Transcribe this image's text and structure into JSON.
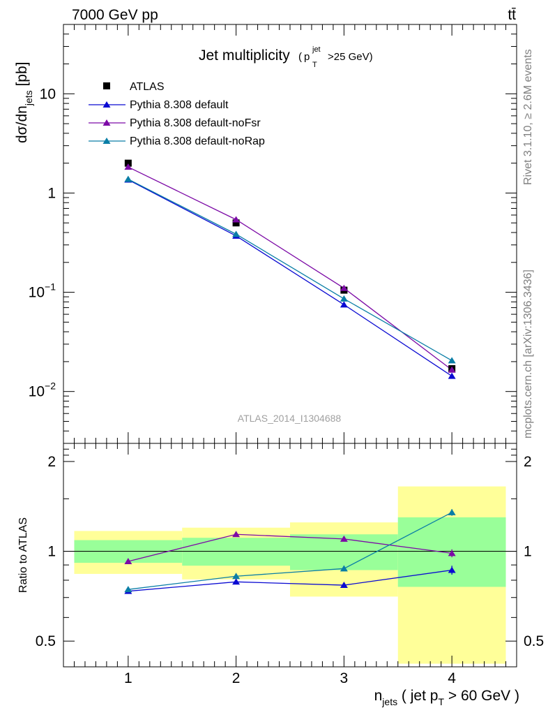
{
  "header": {
    "energy_label": "7000 GeV pp",
    "process_label": "tt̄",
    "side_label_top": "Rivet 3.1.10, ≥ 2.6M events",
    "side_label_bottom": "mcplots.cern.ch [arXiv:1306.3436]"
  },
  "chart_data": [
    {
      "type": "line",
      "title": "Jet multiplicity",
      "title_sub_p": "p",
      "title_sub_sup": "jet",
      "title_sub_sub": "T",
      "title_sub_rest": ">25 GeV)",
      "title_sub_open": "(",
      "analysis_label": "ATLAS_2014_I1304688",
      "ylabel_main": "dσ/dn",
      "ylabel_sub": "jets",
      "ylabel_unit": " [pb]",
      "yscale": "log",
      "ylim": [
        0.003,
        50
      ],
      "xlim": [
        0.4,
        4.6
      ],
      "yticks": [
        {
          "value": 10,
          "label": "10"
        },
        {
          "value": 1,
          "label": "1"
        },
        {
          "value": 0.1,
          "label": "10",
          "sup": "−1"
        },
        {
          "value": 0.01,
          "label": "10",
          "sup": "−2"
        }
      ],
      "legend_position": "top-left",
      "x": [
        1,
        2,
        3,
        4
      ],
      "series": [
        {
          "name": "ATLAS",
          "marker": "square",
          "color": "#000000",
          "values": [
            2.0,
            0.5,
            0.105,
            0.017
          ]
        },
        {
          "name": "Pythia 8.308 default",
          "marker": "triangle",
          "color": "#0a0ad2",
          "values": [
            1.36,
            0.37,
            0.075,
            0.0143
          ]
        },
        {
          "name": "Pythia 8.308 default-noFsr",
          "marker": "triangle",
          "color": "#7c0aa6",
          "values": [
            1.83,
            0.54,
            0.11,
            0.0165
          ]
        },
        {
          "name": "Pythia 8.308 default-noRap",
          "marker": "triangle",
          "color": "#0a7ea6",
          "values": [
            1.38,
            0.385,
            0.086,
            0.0205
          ]
        }
      ]
    },
    {
      "type": "line",
      "ylabel": "Ratio to ATLAS",
      "xlabel_main": "n",
      "xlabel_sub": "jets",
      "xlabel_mid": " ( jet p",
      "xlabel_sub2": "T",
      "xlabel_end": " > 60 GeV )",
      "yscale": "log",
      "ylim": [
        0.41,
        2.3
      ],
      "xlim": [
        0.4,
        4.6
      ],
      "yticks": [
        {
          "value": 2,
          "label": "2"
        },
        {
          "value": 1,
          "label": "1"
        },
        {
          "value": 0.5,
          "label": "0.5"
        }
      ],
      "xticks": [
        {
          "value": 1,
          "label": "1"
        },
        {
          "value": 2,
          "label": "2"
        },
        {
          "value": 3,
          "label": "3"
        },
        {
          "value": 4,
          "label": "4"
        }
      ],
      "bands": [
        {
          "x0": 0.5,
          "x1": 1.5,
          "stat_lo": 0.915,
          "stat_hi": 1.09,
          "tot_lo": 0.84,
          "tot_hi": 1.17
        },
        {
          "x0": 1.5,
          "x1": 2.5,
          "stat_lo": 0.895,
          "stat_hi": 1.11,
          "tot_lo": 0.805,
          "tot_hi": 1.2
        },
        {
          "x0": 2.5,
          "x1": 3.5,
          "stat_lo": 0.865,
          "stat_hi": 1.14,
          "tot_lo": 0.705,
          "tot_hi": 1.25
        },
        {
          "x0": 3.5,
          "x1": 4.5,
          "stat_lo": 0.76,
          "stat_hi": 1.3,
          "tot_lo": 0.42,
          "tot_hi": 1.65
        }
      ],
      "band_colors": {
        "stat": "#99ff99",
        "total": "#ffff99"
      },
      "x": [
        1,
        2,
        3,
        4
      ],
      "series": [
        {
          "name": "Pythia 8.308 default",
          "color": "#0a0ad2",
          "values": [
            0.735,
            0.79,
            0.77,
            0.865
          ],
          "errors": [
            0,
            0,
            0,
            0.03
          ]
        },
        {
          "name": "Pythia 8.308 default-noFsr",
          "color": "#7c0aa6",
          "values": [
            0.925,
            1.14,
            1.1,
            0.985
          ],
          "errors": [
            0,
            0,
            0,
            0.03
          ]
        },
        {
          "name": "Pythia 8.308 default-noRap",
          "color": "#0a7ea6",
          "values": [
            0.745,
            0.825,
            0.875,
            1.35
          ],
          "errors": [
            0,
            0,
            0,
            0.035
          ]
        }
      ]
    }
  ]
}
